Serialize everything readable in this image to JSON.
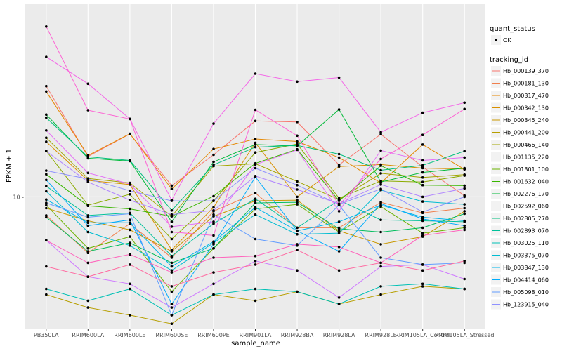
{
  "chart_data": {
    "type": "line",
    "xlabel": "sample_name",
    "ylabel": "FPKM + 1",
    "y_scale": "log",
    "y_ticks": [
      10
    ],
    "y_tick_labels": [
      "10 -"
    ],
    "ylim": [
      1.3,
      200
    ],
    "grid": true,
    "categories": [
      "PB350LA",
      "RRIM600LA",
      "RRIM600LE",
      "RRIM600SE",
      "RRIM600PE",
      "RRIM901LA",
      "RRIM928BA",
      "RRIM928LA",
      "RRIM928LE",
      "RRIM105LA_Control",
      "RRIM105LA_Stressed"
    ],
    "quant_status_legend": {
      "title": "quant_status",
      "entries": [
        "OK"
      ]
    },
    "legend_title": "tracking_id",
    "series": [
      {
        "name": "Hb_000139_370",
        "color": "#F8766D",
        "values": [
          55.6,
          18.7,
          26.5,
          11.9,
          19.2,
          32.4,
          31.9,
          16.4,
          26.4,
          15.9,
          10.2
        ]
      },
      {
        "name": "Hb_000181_130",
        "color": "#F07F4D",
        "values": [
          7.5,
          4.2,
          6.6,
          3.9,
          8.0,
          10.6,
          6.2,
          6.2,
          9.2,
          7.8,
          8.4
        ]
      },
      {
        "name": "Hb_000317_470",
        "color": "#E58700",
        "values": [
          51.2,
          19.0,
          26.6,
          11.3,
          21.0,
          24.5,
          23.6,
          18.4,
          12.4,
          22.5,
          15.3
        ]
      },
      {
        "name": "Hb_000342_130",
        "color": "#D89000",
        "values": [
          23.5,
          12.9,
          12.1,
          4.4,
          8.5,
          23.1,
          10.0,
          16.0,
          16.5,
          15.6,
          15.4
        ]
      },
      {
        "name": "Hb_000345_240",
        "color": "#C99800",
        "values": [
          8.4,
          6.9,
          6.0,
          4.3,
          7.4,
          9.4,
          9.5,
          5.9,
          4.8,
          5.4,
          8.0
        ]
      },
      {
        "name": "Hb_000441_200",
        "color": "#B79F00",
        "values": [
          2.2,
          1.8,
          1.6,
          1.4,
          2.2,
          2.0,
          2.3,
          1.9,
          2.2,
          2.5,
          2.4
        ]
      },
      {
        "name": "Hb_000466_140",
        "color": "#A3A500",
        "values": [
          25.0,
          13.3,
          12.4,
          7.4,
          16.1,
          16.7,
          12.7,
          9.6,
          14.4,
          13.5,
          14.1
        ]
      },
      {
        "name": "Hb_001135_220",
        "color": "#8BAB00",
        "values": [
          20.4,
          8.8,
          10.4,
          5.2,
          9.4,
          19.9,
          22.7,
          9.8,
          12.8,
          12.6,
          13.9
        ]
      },
      {
        "name": "Hb_001301_100",
        "color": "#6BB100",
        "values": [
          8.8,
          4.5,
          5.4,
          2.3,
          4.5,
          8.3,
          8.9,
          5.8,
          8.6,
          5.7,
          6.2
        ]
      },
      {
        "name": "Hb_001632_040",
        "color": "#39B600",
        "values": [
          14.2,
          8.7,
          8.3,
          7.4,
          10.1,
          16.8,
          20.9,
          9.4,
          16.2,
          12.0,
          11.9
        ]
      },
      {
        "name": "Hb_002276_170",
        "color": "#00BA38",
        "values": [
          35.8,
          18.2,
          17.4,
          6.8,
          17.2,
          22.5,
          22.0,
          38.7,
          12.6,
          14.6,
          15.6
        ]
      },
      {
        "name": "Hb_002592_060",
        "color": "#00BD5C",
        "values": [
          7.3,
          4.3,
          4.9,
          3.6,
          4.5,
          9.1,
          9.2,
          6.1,
          5.8,
          6.2,
          7.7
        ]
      },
      {
        "name": "Hb_002805_270",
        "color": "#00BF7D",
        "values": [
          34.1,
          18.6,
          17.6,
          8.1,
          16.4,
          21.6,
          22.2,
          19.4,
          15.1,
          16.3,
          20.3
        ]
      },
      {
        "name": "Hb_002893_070",
        "color": "#00C19A",
        "values": [
          11.8,
          7.5,
          7.8,
          4.0,
          6.6,
          9.7,
          6.2,
          9.5,
          7.0,
          6.9,
          6.8
        ]
      },
      {
        "name": "Hb_003025_110",
        "color": "#00C0B5",
        "values": [
          2.4,
          2.0,
          2.4,
          1.6,
          2.2,
          2.4,
          2.3,
          1.9,
          2.5,
          2.6,
          2.4
        ]
      },
      {
        "name": "Hb_003375_070",
        "color": "#00BCD1",
        "values": [
          10.9,
          5.8,
          4.7,
          3.2,
          4.9,
          7.6,
          5.6,
          5.7,
          11.1,
          9.3,
          8.9
        ]
      },
      {
        "name": "Hb_003847_130",
        "color": "#00B6EB",
        "values": [
          9.6,
          6.7,
          6.7,
          3.4,
          5.0,
          8.5,
          5.9,
          6.8,
          8.8,
          7.3,
          6.9
        ]
      },
      {
        "name": "Hb_004414_060",
        "color": "#00ACFC",
        "values": [
          13.0,
          6.4,
          7.0,
          1.9,
          4.8,
          13.6,
          5.9,
          4.3,
          9.0,
          7.1,
          6.4
        ]
      },
      {
        "name": "Hb_005098_010",
        "color": "#619CFF",
        "values": [
          9.1,
          7.3,
          7.7,
          1.6,
          7.6,
          5.2,
          4.7,
          8.8,
          3.9,
          3.5,
          3.6
        ]
      },
      {
        "name": "Hb_123915_040",
        "color": "#8F91FF",
        "values": [
          15.0,
          13.2,
          11.0,
          9.4,
          9.4,
          15.6,
          12.0,
          8.9,
          11.3,
          7.9,
          10.0
        ]
      },
      {
        "name": "",
        "color": "#B186FF",
        "values": [
          20.3,
          12.6,
          9.5,
          7.6,
          8.1,
          13.8,
          11.2,
          9.0,
          12.1,
          10.0,
          11.4
        ]
      },
      {
        "name": "",
        "color": "#CE79FF",
        "values": [
          5.1,
          2.9,
          2.6,
          1.8,
          2.6,
          3.7,
          3.2,
          2.1,
          3.4,
          3.5,
          2.8
        ]
      },
      {
        "name": "",
        "color": "#E46EF6",
        "values": [
          28.0,
          14.5,
          12.2,
          6.3,
          6.8,
          16.5,
          20.7,
          8.0,
          20.5,
          17.6,
          18.4
        ]
      },
      {
        "name": "",
        "color": "#F466E8",
        "values": [
          87.4,
          57.7,
          33.5,
          9.5,
          31.1,
          67.4,
          59.6,
          63.5,
          27.2,
          36.8,
          43.0
        ]
      },
      {
        "name": "",
        "color": "#FD61D3",
        "values": [
          140.0,
          38.3,
          33.4,
          5.8,
          5.5,
          38.5,
          25.8,
          8.8,
          18.0,
          26.1,
          39.0
        ]
      },
      {
        "name": "",
        "color": "#FF63BC",
        "values": [
          5.1,
          3.6,
          4.1,
          3.1,
          3.9,
          4.0,
          4.8,
          4.6,
          3.6,
          5.5,
          6.0
        ]
      },
      {
        "name": "",
        "color": "#FF6AA1",
        "values": [
          3.4,
          2.9,
          3.5,
          2.5,
          3.1,
          3.5,
          4.4,
          3.2,
          3.6,
          3.2,
          3.7
        ]
      }
    ]
  }
}
